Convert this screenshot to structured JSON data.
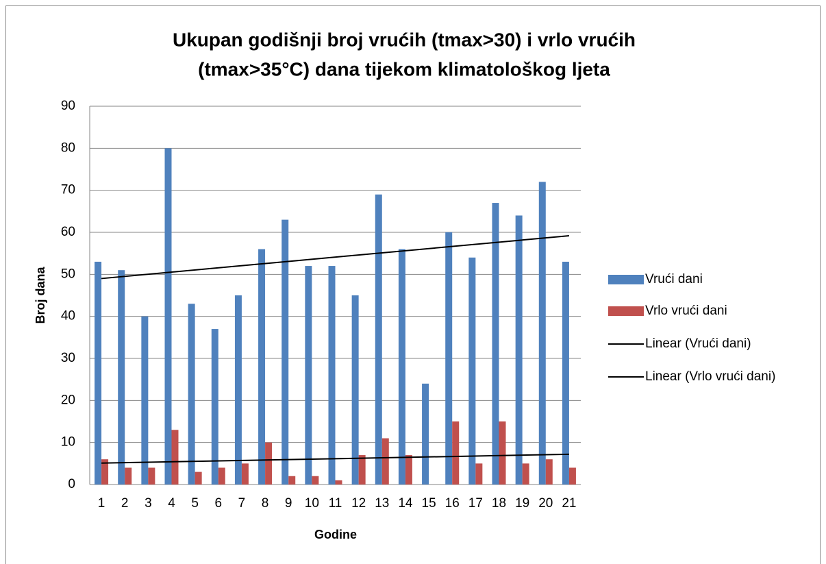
{
  "chart_data": {
    "type": "bar",
    "title": [
      "Ukupan godišnji broj vrućih (tmax>30) i vrlo vrućih",
      "(tmax>35°C) dana tijekom klimatološkog ljeta"
    ],
    "x_label": "Godine",
    "y_label": "Broj dana",
    "categories": [
      "1",
      "2",
      "3",
      "4",
      "5",
      "6",
      "7",
      "8",
      "9",
      "10",
      "11",
      "12",
      "13",
      "14",
      "15",
      "16",
      "17",
      "18",
      "19",
      "20",
      "21"
    ],
    "series": [
      {
        "name": "Vrući dani",
        "color": "#4f81bd",
        "values": [
          53,
          51,
          40,
          80,
          43,
          37,
          45,
          56,
          63,
          52,
          52,
          45,
          69,
          56,
          24,
          60,
          54,
          67,
          64,
          72,
          53
        ]
      },
      {
        "name": "Vrlo vrući dani",
        "color": "#c0504d",
        "values": [
          6,
          4,
          4,
          13,
          3,
          4,
          5,
          10,
          2,
          2,
          1,
          7,
          11,
          7,
          0,
          15,
          5,
          15,
          5,
          6,
          4
        ]
      }
    ],
    "trendlines": [
      {
        "name": "Linear (Vrući dani)",
        "series": 0,
        "color": "#000000"
      },
      {
        "name": "Linear (Vrlo vrući dani)",
        "series": 1,
        "color": "#000000"
      }
    ],
    "ylim": [
      0,
      90
    ],
    "yticks": [
      0,
      10,
      20,
      30,
      40,
      50,
      60,
      70,
      80,
      90
    ],
    "grid": true,
    "legend": "right"
  }
}
